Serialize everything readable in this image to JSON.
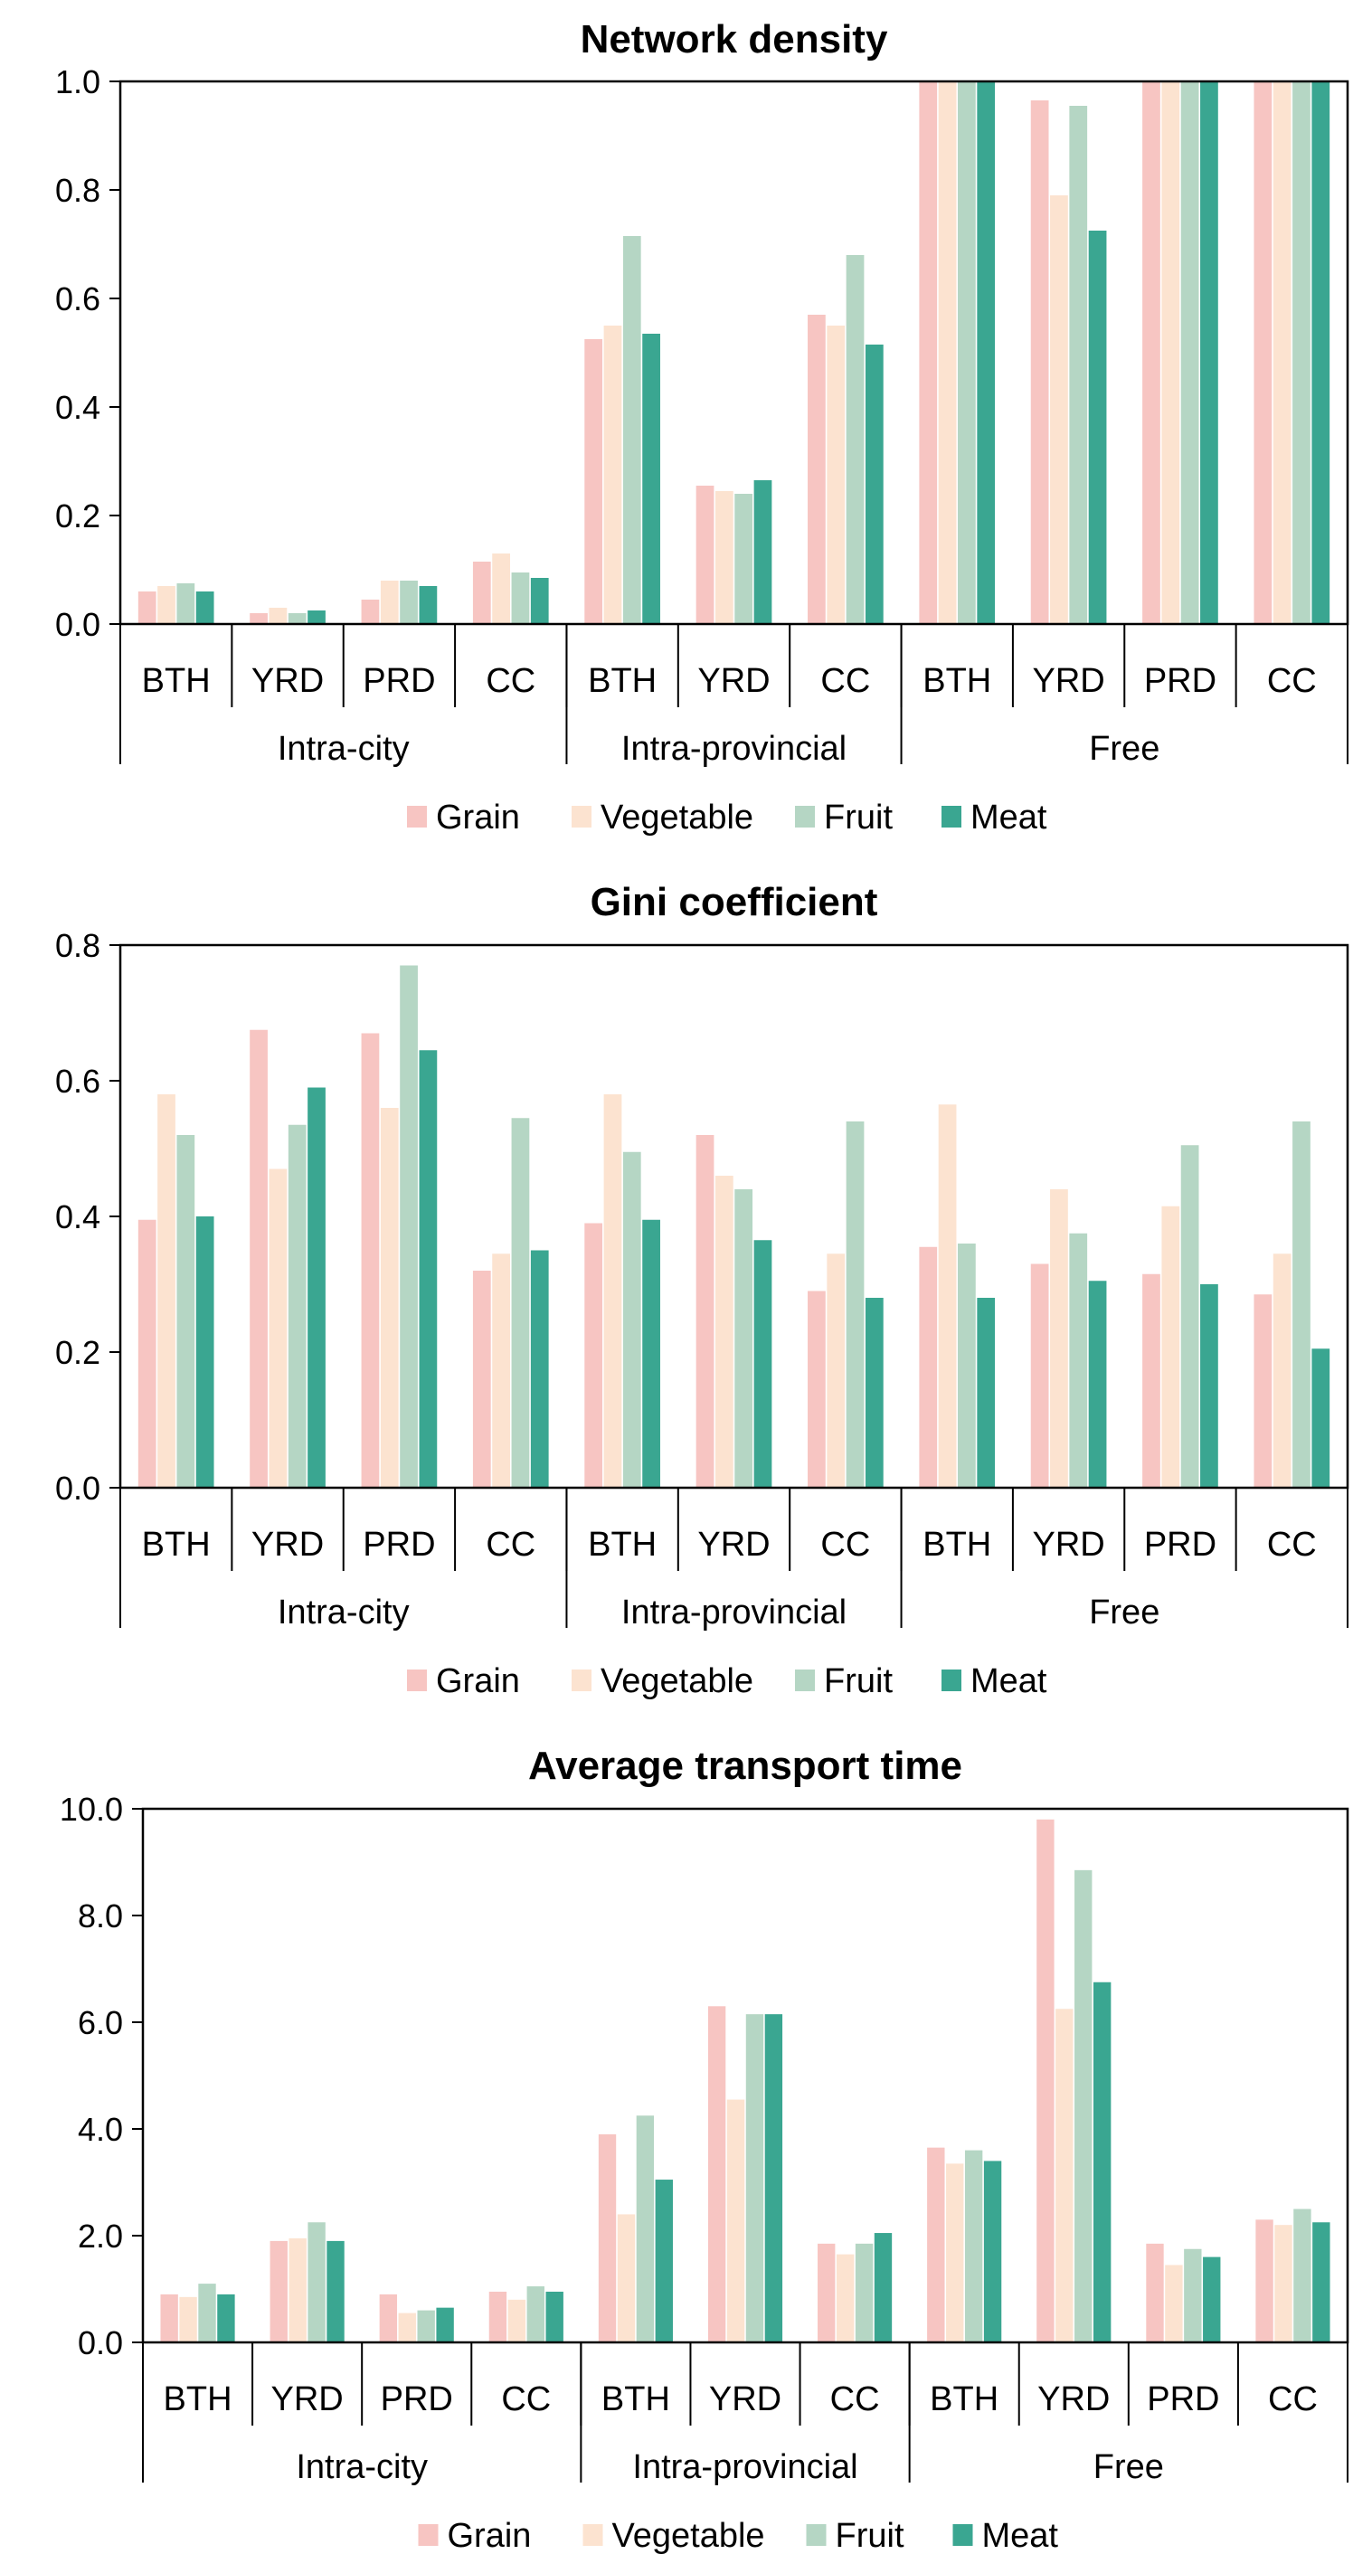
{
  "colors": {
    "Grain": "#F7C5C2",
    "Vegetable": "#FCE3D0",
    "Fruit": "#B5D6C4",
    "Meat": "#3AA691"
  },
  "chart_data": [
    {
      "type": "bar",
      "title": "Network density",
      "ylim": [
        0,
        1.0
      ],
      "yticks": [
        "0.0",
        "0.2",
        "0.4",
        "0.6",
        "0.8",
        "1.0"
      ],
      "groups": [
        {
          "label": "Intra-city",
          "categories": [
            "BTH",
            "YRD",
            "PRD",
            "CC"
          ]
        },
        {
          "label": "Intra-provincial",
          "categories": [
            "BTH",
            "YRD",
            "CC"
          ]
        },
        {
          "label": "Free",
          "categories": [
            "BTH",
            "YRD",
            "PRD",
            "CC"
          ]
        }
      ],
      "legend": [
        "Grain",
        "Vegetable",
        "Fruit",
        "Meat"
      ],
      "series": [
        {
          "name": "Grain",
          "values": [
            0.06,
            0.02,
            0.045,
            0.115,
            0.525,
            0.255,
            0.57,
            1.0,
            0.965,
            1.0,
            1.0
          ]
        },
        {
          "name": "Vegetable",
          "values": [
            0.07,
            0.03,
            0.08,
            0.13,
            0.55,
            0.245,
            0.55,
            1.0,
            0.79,
            1.0,
            1.0
          ]
        },
        {
          "name": "Fruit",
          "values": [
            0.075,
            0.02,
            0.08,
            0.095,
            0.715,
            0.24,
            0.68,
            1.0,
            0.955,
            1.0,
            1.0
          ]
        },
        {
          "name": "Meat",
          "values": [
            0.06,
            0.025,
            0.07,
            0.085,
            0.535,
            0.265,
            0.515,
            1.0,
            0.725,
            1.0,
            1.0
          ]
        }
      ]
    },
    {
      "type": "bar",
      "title": "Gini coefficient",
      "ylim": [
        0,
        0.8
      ],
      "yticks": [
        "0.0",
        "0.2",
        "0.4",
        "0.6",
        "0.8"
      ],
      "groups": [
        {
          "label": "Intra-city",
          "categories": [
            "BTH",
            "YRD",
            "PRD",
            "CC"
          ]
        },
        {
          "label": "Intra-provincial",
          "categories": [
            "BTH",
            "YRD",
            "CC"
          ]
        },
        {
          "label": "Free",
          "categories": [
            "BTH",
            "YRD",
            "PRD",
            "CC"
          ]
        }
      ],
      "legend": [
        "Grain",
        "Vegetable",
        "Fruit",
        "Meat"
      ],
      "series": [
        {
          "name": "Grain",
          "values": [
            0.395,
            0.675,
            0.67,
            0.32,
            0.39,
            0.52,
            0.29,
            0.355,
            0.33,
            0.315,
            0.285
          ]
        },
        {
          "name": "Vegetable",
          "values": [
            0.58,
            0.47,
            0.56,
            0.345,
            0.58,
            0.46,
            0.345,
            0.565,
            0.44,
            0.415,
            0.345
          ]
        },
        {
          "name": "Fruit",
          "values": [
            0.52,
            0.535,
            0.77,
            0.545,
            0.495,
            0.44,
            0.54,
            0.36,
            0.375,
            0.505,
            0.54
          ]
        },
        {
          "name": "Meat",
          "values": [
            0.4,
            0.59,
            0.645,
            0.35,
            0.395,
            0.365,
            0.28,
            0.28,
            0.305,
            0.3,
            0.205
          ]
        }
      ]
    },
    {
      "type": "bar",
      "title": "Average transport time",
      "ylim": [
        0,
        10.0
      ],
      "yticks": [
        "0.0",
        "2.0",
        "4.0",
        "6.0",
        "8.0",
        "10.0"
      ],
      "groups": [
        {
          "label": "Intra-city",
          "categories": [
            "BTH",
            "YRD",
            "PRD",
            "CC"
          ]
        },
        {
          "label": "Intra-provincial",
          "categories": [
            "BTH",
            "YRD",
            "CC"
          ]
        },
        {
          "label": "Free",
          "categories": [
            "BTH",
            "YRD",
            "PRD",
            "CC"
          ]
        }
      ],
      "legend": [
        "Grain",
        "Vegetable",
        "Fruit",
        "Meat"
      ],
      "series": [
        {
          "name": "Grain",
          "values": [
            0.9,
            1.9,
            0.9,
            0.95,
            3.9,
            6.3,
            1.85,
            3.65,
            9.8,
            1.85,
            2.3
          ]
        },
        {
          "name": "Vegetable",
          "values": [
            0.85,
            1.95,
            0.55,
            0.8,
            2.4,
            4.55,
            1.65,
            3.35,
            6.25,
            1.45,
            2.2
          ]
        },
        {
          "name": "Fruit",
          "values": [
            1.1,
            2.25,
            0.6,
            1.05,
            4.25,
            6.15,
            1.85,
            3.6,
            8.85,
            1.75,
            2.5
          ]
        },
        {
          "name": "Meat",
          "values": [
            0.9,
            1.9,
            0.65,
            0.95,
            3.05,
            6.15,
            2.05,
            3.4,
            6.75,
            1.6,
            2.25
          ]
        }
      ]
    }
  ]
}
